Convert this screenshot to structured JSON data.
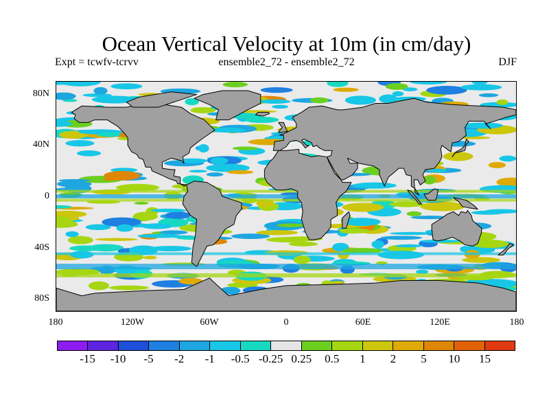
{
  "header": {
    "title": "Ocean Vertical Velocity at 10m (in cm/day)",
    "expt": "Expt = tcwfv-tcrvv",
    "ensemble": "ensemble2_72 - ensemble2_72",
    "season": "DJF"
  },
  "map": {
    "ocean_color": "#eaeaea",
    "land_color": "#a0a0a0",
    "coast_color": "#000000"
  },
  "axes": {
    "lat_ticks": [
      {
        "label": "80N",
        "lat": 80
      },
      {
        "label": "40N",
        "lat": 40
      },
      {
        "label": "0",
        "lat": 0
      },
      {
        "label": "40S",
        "lat": -40
      },
      {
        "label": "80S",
        "lat": -80
      }
    ],
    "lon_ticks": [
      {
        "label": "180",
        "lon": -180
      },
      {
        "label": "120W",
        "lon": -120
      },
      {
        "label": "60W",
        "lon": -60
      },
      {
        "label": "0",
        "lon": 0
      },
      {
        "label": "60E",
        "lon": 60
      },
      {
        "label": "120E",
        "lon": 120
      },
      {
        "label": "180",
        "lon": 180
      }
    ]
  },
  "colorbar": {
    "colors": [
      "#8c1cf0",
      "#5e24e0",
      "#1e4fd8",
      "#1e80e0",
      "#1ea6e0",
      "#18c6e6",
      "#18d8c2",
      "#e6e6e6",
      "#6ccf20",
      "#a6d612",
      "#ccc60c",
      "#deaa08",
      "#e08606",
      "#e26208",
      "#e03a10"
    ],
    "labels": [
      "-15",
      "-10",
      "-5",
      "-2",
      "-1",
      "-0.5",
      "-0.25",
      "0.25",
      "0.5",
      "1",
      "2",
      "5",
      "10",
      "15"
    ]
  }
}
